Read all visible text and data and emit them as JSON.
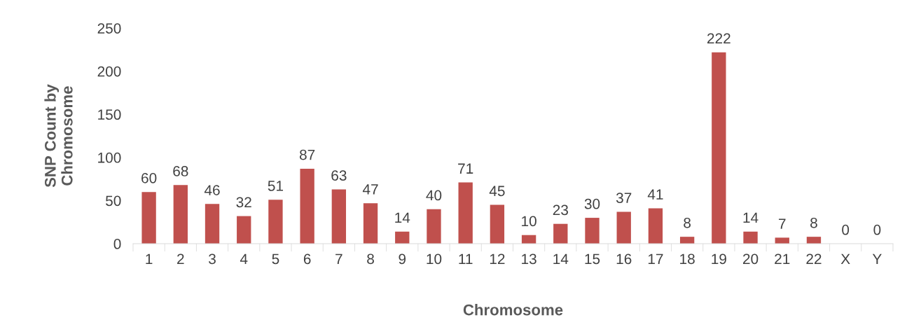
{
  "chart_data": {
    "type": "bar",
    "xlabel": "Chromosome",
    "ylabel": "SNP Count by\nChromosome",
    "categories": [
      "1",
      "2",
      "3",
      "4",
      "5",
      "6",
      "7",
      "8",
      "9",
      "10",
      "11",
      "12",
      "13",
      "14",
      "15",
      "16",
      "17",
      "18",
      "19",
      "20",
      "21",
      "22",
      "X",
      "Y"
    ],
    "values": [
      60,
      68,
      46,
      32,
      51,
      87,
      63,
      47,
      14,
      40,
      71,
      45,
      10,
      23,
      30,
      37,
      41,
      8,
      222,
      14,
      7,
      8,
      0,
      0
    ],
    "color": "#c0504d",
    "ylim": [
      0,
      250
    ],
    "yticks": [
      0,
      50,
      100,
      150,
      200,
      250
    ],
    "grid": false,
    "data_labels": true
  }
}
